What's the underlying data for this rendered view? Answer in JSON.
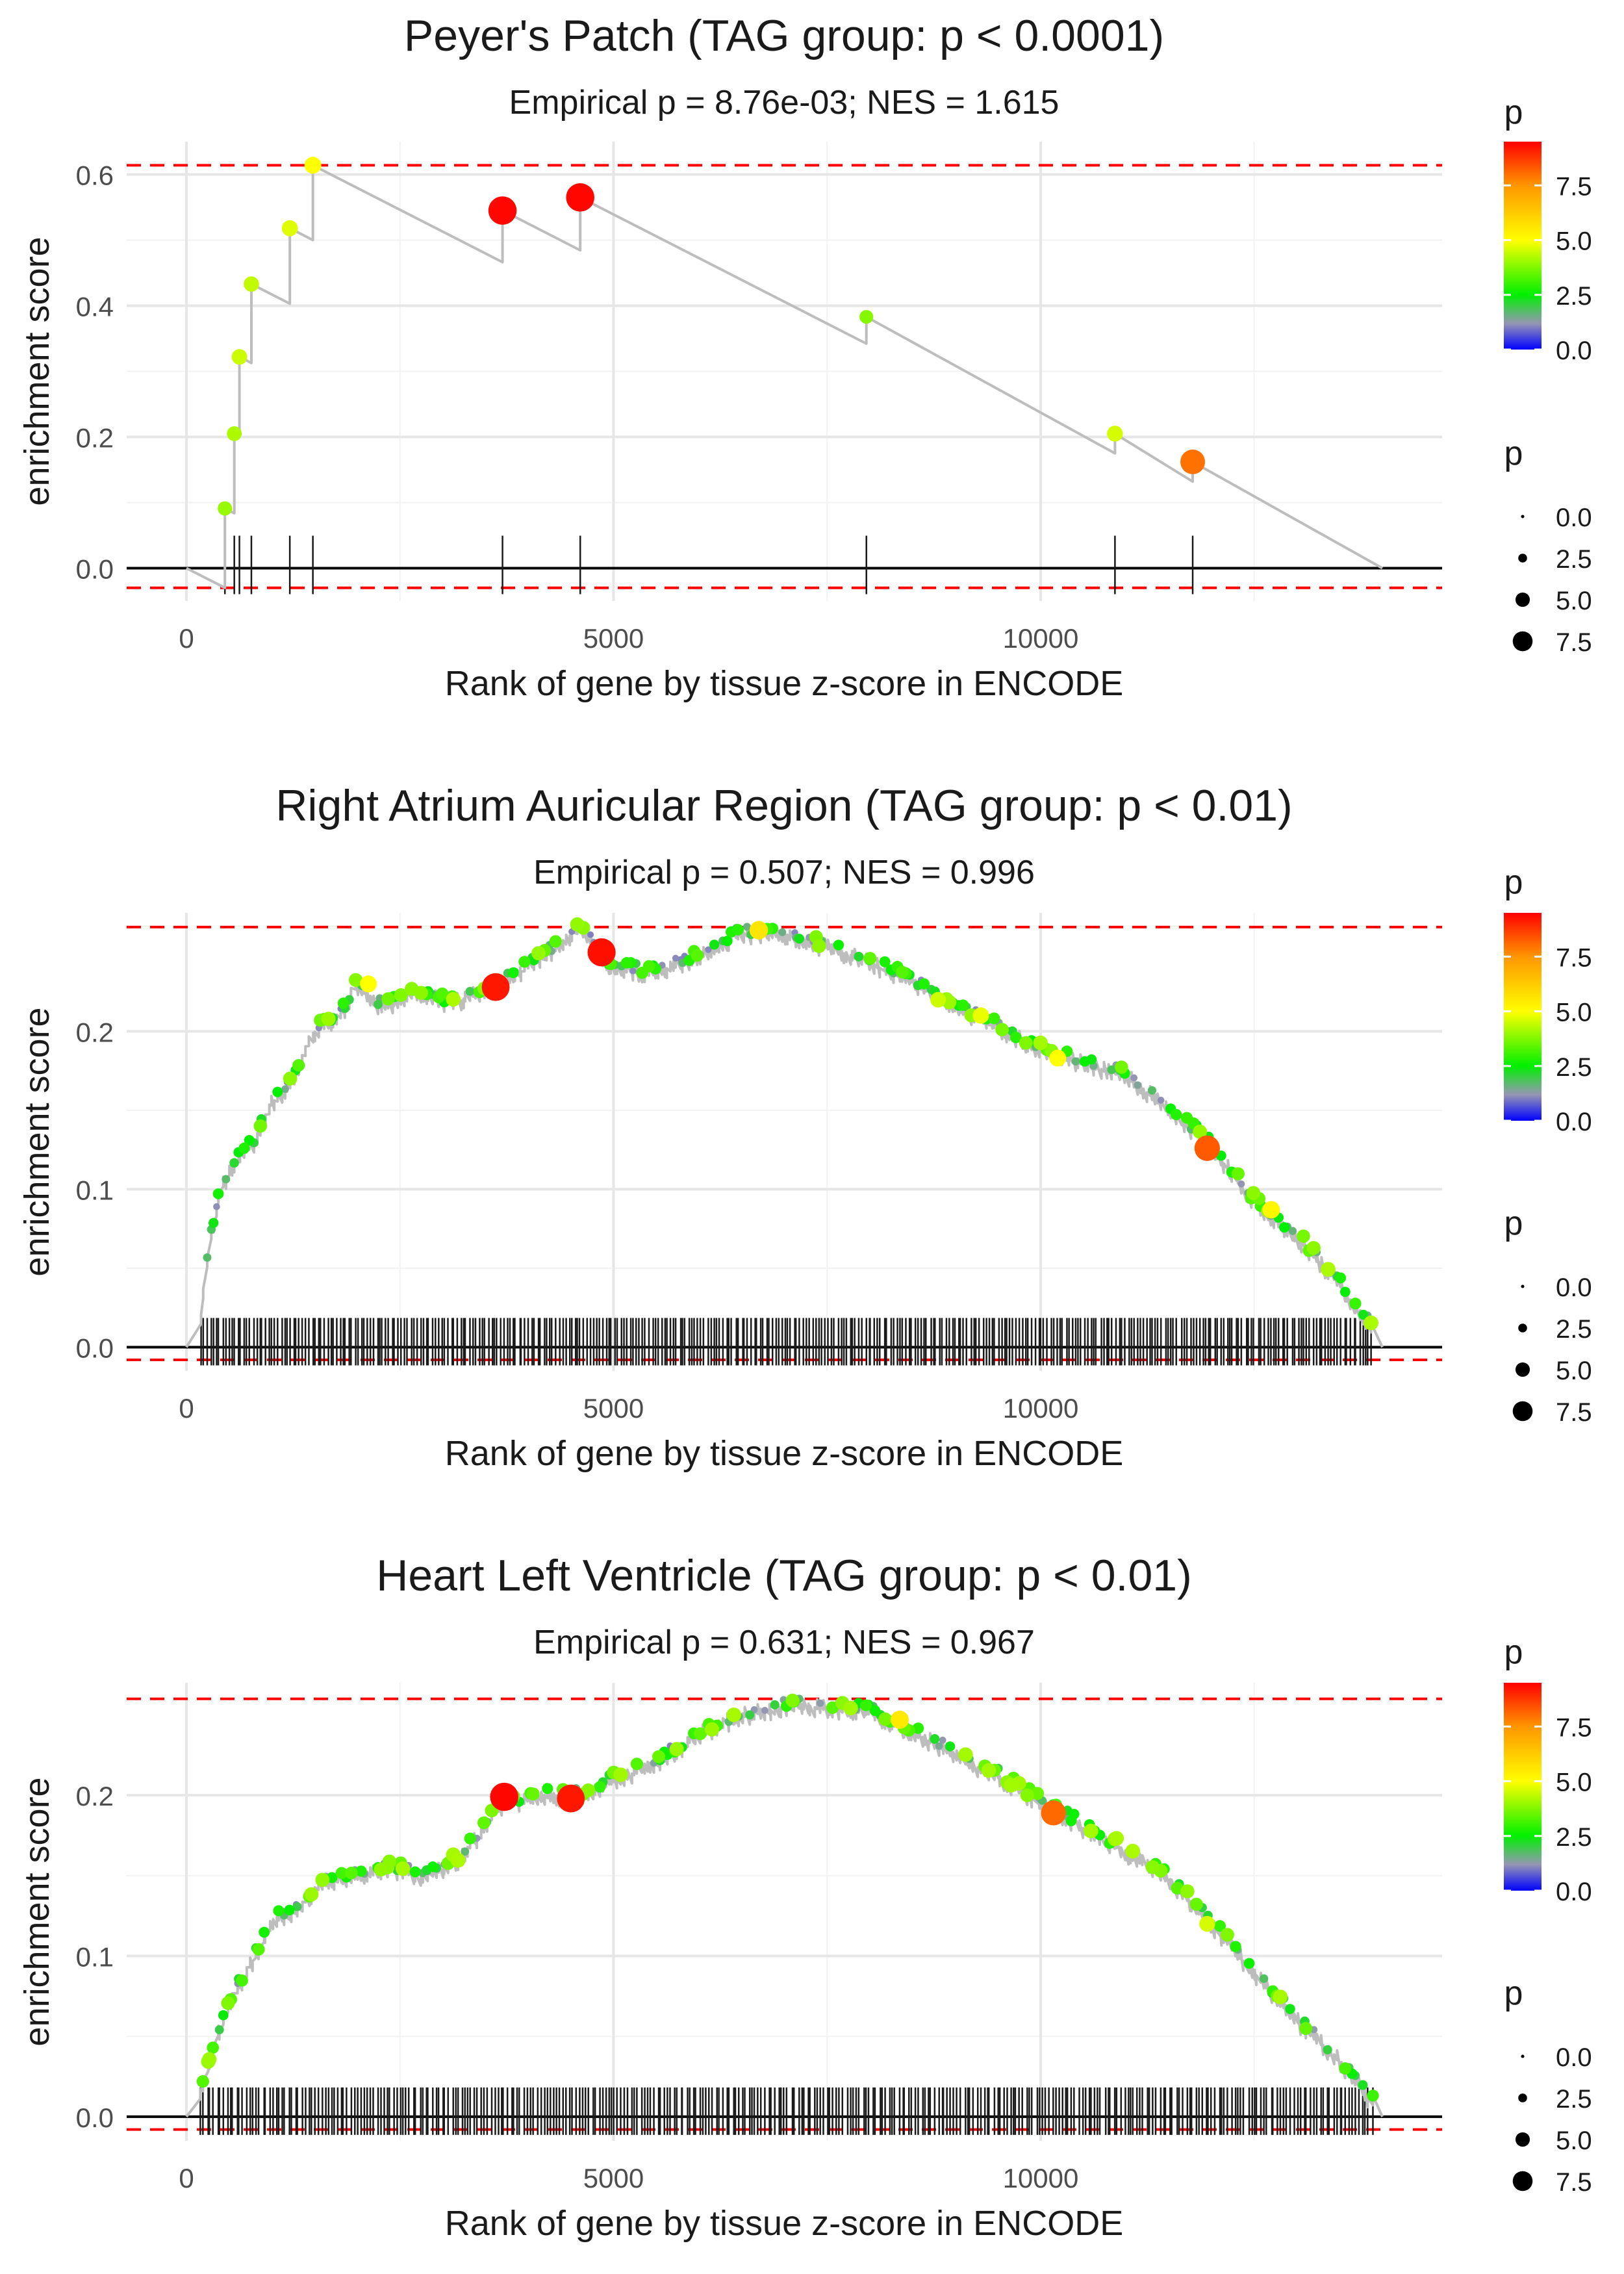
{
  "chart_data": [
    {
      "type": "line",
      "title": "Peyer's Patch (TAG group: p < 0.0001)",
      "subtitle": "Empirical p = 8.76e-03; NES = 1.615",
      "xlabel": "Rank of gene by tissue z-score in ENCODE",
      "ylabel": "enrichment score",
      "xlim": [
        -700,
        14700
      ],
      "ylim": [
        -0.05,
        0.65
      ],
      "xticks": [
        0,
        5000,
        10000
      ],
      "xtick_labels": [
        "0",
        "5000",
        "10000"
      ],
      "yticks": [
        0.0,
        0.2,
        0.4,
        0.6
      ],
      "ytick_labels": [
        "0.0",
        "0.2",
        "0.4",
        "0.6"
      ],
      "upper_ref": 0.614,
      "lower_ref": -0.03,
      "hits": [
        {
          "x": 450,
          "es": 0.091,
          "p": 4.0
        },
        {
          "x": 560,
          "es": 0.205,
          "p": 4.2
        },
        {
          "x": 620,
          "es": 0.322,
          "p": 4.5
        },
        {
          "x": 760,
          "es": 0.433,
          "p": 4.4
        },
        {
          "x": 1210,
          "es": 0.518,
          "p": 4.7
        },
        {
          "x": 1480,
          "es": 0.614,
          "p": 5.0
        },
        {
          "x": 3700,
          "es": 0.545,
          "p": 9.4
        },
        {
          "x": 4610,
          "es": 0.565,
          "p": 9.4
        },
        {
          "x": 7960,
          "es": 0.383,
          "p": 3.8
        },
        {
          "x": 10870,
          "es": 0.205,
          "p": 4.6
        },
        {
          "x": 11780,
          "es": 0.162,
          "p": 8.0
        }
      ],
      "end_x": 14000,
      "legend_color": {
        "title": "p",
        "ticks": [
          "0.0",
          "2.5",
          "5.0",
          "7.5"
        ]
      },
      "legend_size": {
        "title": "p",
        "labels": [
          "0.0",
          "2.5",
          "5.0",
          "7.5"
        ]
      }
    },
    {
      "type": "line",
      "title": "Right Atrium Auricular Region (TAG group: p < 0.01)",
      "subtitle": "Empirical p = 0.507; NES = 0.996",
      "xlabel": "Rank of gene by tissue z-score in ENCODE",
      "ylabel": "enrichment score",
      "xlim": [
        -700,
        14700
      ],
      "ylim": [
        -0.015,
        0.275
      ],
      "xticks": [
        0,
        5000,
        10000
      ],
      "xtick_labels": [
        "0",
        "5000",
        "10000"
      ],
      "yticks": [
        0.0,
        0.1,
        0.2
      ],
      "ytick_labels": [
        "0.0",
        "0.1",
        "0.2"
      ],
      "upper_ref": 0.266,
      "lower_ref": -0.008,
      "curve": [
        [
          0,
          0
        ],
        [
          150,
          0.01
        ],
        [
          250,
          0.06
        ],
        [
          400,
          0.1
        ],
        [
          600,
          0.12
        ],
        [
          800,
          0.13
        ],
        [
          1000,
          0.155
        ],
        [
          1200,
          0.165
        ],
        [
          1500,
          0.2
        ],
        [
          1800,
          0.21
        ],
        [
          2000,
          0.23
        ],
        [
          2300,
          0.215
        ],
        [
          2700,
          0.225
        ],
        [
          3100,
          0.218
        ],
        [
          3600,
          0.228
        ],
        [
          4200,
          0.248
        ],
        [
          4600,
          0.265
        ],
        [
          5000,
          0.24
        ],
        [
          5500,
          0.237
        ],
        [
          6000,
          0.248
        ],
        [
          6500,
          0.262
        ],
        [
          7000,
          0.262
        ],
        [
          7800,
          0.248
        ],
        [
          8500,
          0.232
        ],
        [
          9000,
          0.215
        ],
        [
          9500,
          0.203
        ],
        [
          10000,
          0.188
        ],
        [
          10500,
          0.18
        ],
        [
          11000,
          0.172
        ],
        [
          11500,
          0.152
        ],
        [
          12000,
          0.127
        ],
        [
          12500,
          0.093
        ],
        [
          13000,
          0.07
        ],
        [
          13500,
          0.04
        ],
        [
          13900,
          0.01
        ],
        [
          14000,
          0.005
        ]
      ],
      "big_points": [
        {
          "x": 2130,
          "es": 0.23,
          "p": 5.0
        },
        {
          "x": 3620,
          "es": 0.228,
          "p": 9.2
        },
        {
          "x": 4860,
          "es": 0.25,
          "p": 9.3
        },
        {
          "x": 6700,
          "es": 0.264,
          "p": 5.6
        },
        {
          "x": 8800,
          "es": 0.22,
          "p": 4.5
        },
        {
          "x": 9300,
          "es": 0.21,
          "p": 4.8
        },
        {
          "x": 10200,
          "es": 0.183,
          "p": 5.0
        },
        {
          "x": 11950,
          "es": 0.126,
          "p": 8.3
        },
        {
          "x": 12700,
          "es": 0.087,
          "p": 5.2
        }
      ],
      "n_hits": 380,
      "end_x": 14000,
      "legend_color": {
        "title": "p",
        "ticks": [
          "0.0",
          "2.5",
          "5.0",
          "7.5"
        ]
      },
      "legend_size": {
        "title": "p",
        "labels": [
          "0.0",
          "2.5",
          "5.0",
          "7.5"
        ]
      }
    },
    {
      "type": "line",
      "title": "Heart Left Ventricle (TAG group: p < 0.01)",
      "subtitle": "Empirical p = 0.631; NES = 0.967",
      "xlabel": "Rank of gene by tissue z-score in ENCODE",
      "ylabel": "enrichment score",
      "xlim": [
        -700,
        14700
      ],
      "ylim": [
        -0.015,
        0.27
      ],
      "xticks": [
        0,
        5000,
        10000
      ],
      "xtick_labels": [
        "0",
        "5000",
        "10000"
      ],
      "yticks": [
        0.0,
        0.1,
        0.2
      ],
      "ytick_labels": [
        "0.0",
        "0.1",
        "0.2"
      ],
      "upper_ref": 0.26,
      "lower_ref": -0.008,
      "curve": [
        [
          0,
          0
        ],
        [
          200,
          0.02
        ],
        [
          350,
          0.05
        ],
        [
          600,
          0.08
        ],
        [
          800,
          0.1
        ],
        [
          1000,
          0.122
        ],
        [
          1300,
          0.13
        ],
        [
          1600,
          0.145
        ],
        [
          2000,
          0.15
        ],
        [
          2400,
          0.155
        ],
        [
          2800,
          0.15
        ],
        [
          3200,
          0.16
        ],
        [
          3700,
          0.195
        ],
        [
          4200,
          0.2
        ],
        [
          4600,
          0.2
        ],
        [
          5000,
          0.21
        ],
        [
          5500,
          0.22
        ],
        [
          6000,
          0.238
        ],
        [
          6500,
          0.25
        ],
        [
          7000,
          0.255
        ],
        [
          7500,
          0.255
        ],
        [
          8000,
          0.252
        ],
        [
          8500,
          0.24
        ],
        [
          9000,
          0.225
        ],
        [
          9500,
          0.212
        ],
        [
          10000,
          0.195
        ],
        [
          10500,
          0.18
        ],
        [
          11000,
          0.165
        ],
        [
          11500,
          0.148
        ],
        [
          12000,
          0.12
        ],
        [
          12500,
          0.09
        ],
        [
          13000,
          0.06
        ],
        [
          13500,
          0.035
        ],
        [
          13900,
          0.008
        ],
        [
          14000,
          0.004
        ]
      ],
      "big_points": [
        {
          "x": 3720,
          "es": 0.199,
          "p": 9.4
        },
        {
          "x": 4500,
          "es": 0.198,
          "p": 9.2
        },
        {
          "x": 8350,
          "es": 0.247,
          "p": 5.5
        },
        {
          "x": 10150,
          "es": 0.189,
          "p": 8.1
        },
        {
          "x": 11950,
          "es": 0.12,
          "p": 4.6
        }
      ],
      "n_hits": 360,
      "end_x": 14000,
      "legend_color": {
        "title": "p",
        "ticks": [
          "0.0",
          "2.5",
          "5.0",
          "7.5"
        ]
      },
      "legend_size": {
        "title": "p",
        "labels": [
          "0.0",
          "2.5",
          "5.0",
          "7.5"
        ]
      }
    }
  ]
}
